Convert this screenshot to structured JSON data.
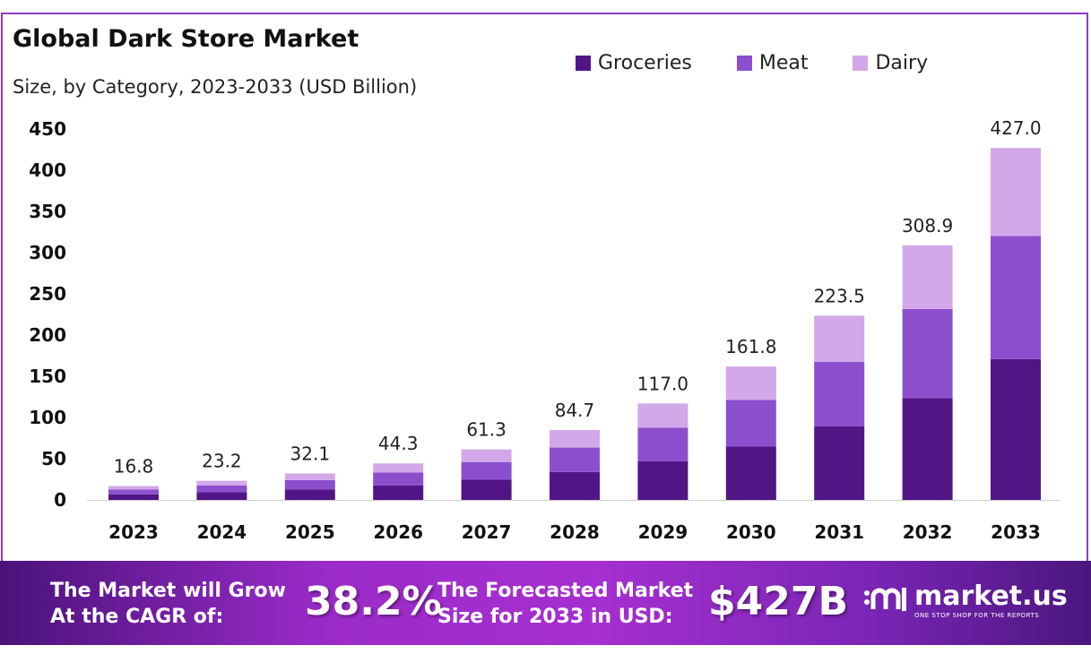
{
  "chart_data": {
    "type": "bar",
    "stacked": true,
    "title": "Global Dark Store Market",
    "subtitle": "Size, by Category, 2023-2033 (USD Billion)",
    "categories": [
      "2023",
      "2024",
      "2025",
      "2026",
      "2027",
      "2028",
      "2029",
      "2030",
      "2031",
      "2032",
      "2033"
    ],
    "series": [
      {
        "name": "Groceries",
        "color": "#521585",
        "values": [
          6.7,
          9.3,
          12.8,
          17.7,
          24.5,
          33.9,
          46.8,
          64.7,
          89.4,
          123.6,
          170.8
        ]
      },
      {
        "name": "Meat",
        "color": "#8b4fcd",
        "values": [
          5.9,
          8.1,
          11.2,
          15.5,
          21.5,
          29.6,
          41.0,
          56.6,
          78.2,
          108.1,
          149.5
        ]
      },
      {
        "name": "Dairy",
        "color": "#d2a8ea",
        "values": [
          4.2,
          5.8,
          8.1,
          11.1,
          15.3,
          21.2,
          29.2,
          40.5,
          55.9,
          77.2,
          106.7
        ]
      }
    ],
    "totals": [
      "16.8",
      "23.2",
      "32.1",
      "44.3",
      "61.3",
      "84.7",
      "117.0",
      "161.8",
      "223.5",
      "308.9",
      "427.0"
    ],
    "yticks": [
      "0",
      "50",
      "100",
      "150",
      "200",
      "250",
      "300",
      "350",
      "400",
      "450"
    ],
    "ylim": [
      0,
      450
    ],
    "grid": false,
    "legend": "top-right"
  },
  "footer": {
    "cagr_label_1": "The Market will Grow",
    "cagr_label_2": "At the CAGR of:",
    "cagr_value": "38.2%",
    "forecast_label_1": "The Forecasted Market",
    "forecast_label_2": "Size for 2033 in USD:",
    "forecast_value": "$427B",
    "logo_name": "market.us",
    "logo_tagline": "ONE STOP SHOP FOR THE REPORTS"
  }
}
